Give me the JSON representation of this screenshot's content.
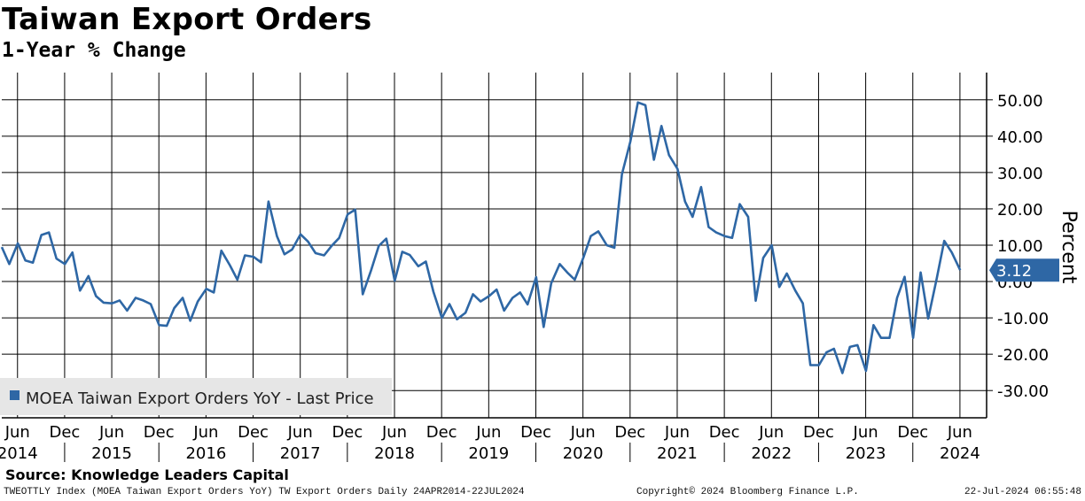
{
  "title": "Taiwan Export Orders",
  "subtitle": "1-Year % Change",
  "source": "Source: Knowledge Leaders Capital",
  "footer": {
    "left": "TWEOTTLY Index (MOEA Taiwan Export Orders YoY) TW Export Orders  Daily 24APR2014-22JUL2024",
    "center": "Copyright© 2024 Bloomberg Finance L.P.",
    "right": "22-Jul-2024 06:55:48"
  },
  "chart_data": {
    "type": "line",
    "ylabel": "Percent",
    "ylim": [
      -37.5,
      57.5
    ],
    "xlim": [
      2014.25,
      2024.7
    ],
    "yticks": [
      50,
      40,
      30,
      20,
      10,
      0,
      -10,
      -20,
      -30
    ],
    "ytick_labels": [
      "50.00",
      "40.00",
      "30.00",
      "20.00",
      "10.00",
      "0.00",
      "-10.00",
      "-20.00",
      "-30.00"
    ],
    "month_ticks": [
      {
        "x": 2014.417,
        "label": "Jun",
        "year": "2014"
      },
      {
        "x": 2014.917,
        "label": "Dec"
      },
      {
        "x": 2015.417,
        "label": "Jun",
        "year": "2015"
      },
      {
        "x": 2015.917,
        "label": "Dec"
      },
      {
        "x": 2016.417,
        "label": "Jun",
        "year": "2016"
      },
      {
        "x": 2016.917,
        "label": "Dec"
      },
      {
        "x": 2017.417,
        "label": "Jun",
        "year": "2017"
      },
      {
        "x": 2017.917,
        "label": "Dec"
      },
      {
        "x": 2018.417,
        "label": "Jun",
        "year": "2018"
      },
      {
        "x": 2018.917,
        "label": "Dec"
      },
      {
        "x": 2019.417,
        "label": "Jun",
        "year": "2019"
      },
      {
        "x": 2019.917,
        "label": "Dec"
      },
      {
        "x": 2020.417,
        "label": "Jun",
        "year": "2020"
      },
      {
        "x": 2020.917,
        "label": "Dec"
      },
      {
        "x": 2021.417,
        "label": "Jun",
        "year": "2021"
      },
      {
        "x": 2021.917,
        "label": "Dec"
      },
      {
        "x": 2022.417,
        "label": "Jun",
        "year": "2022"
      },
      {
        "x": 2022.917,
        "label": "Dec"
      },
      {
        "x": 2023.417,
        "label": "Jun",
        "year": "2023"
      },
      {
        "x": 2023.917,
        "label": "Dec"
      },
      {
        "x": 2024.417,
        "label": "Jun",
        "year": "2024"
      }
    ],
    "year_separators": [
      2014.917,
      2015.917,
      2016.917,
      2017.917,
      2018.917,
      2019.917,
      2020.917,
      2021.917,
      2022.917,
      2023.917
    ],
    "legend": "MOEA Taiwan Export Orders YoY - Last Price",
    "legend_position": "bottom-left",
    "last_value_label": "3.12",
    "series": [
      {
        "name": "MOEA Taiwan Export Orders YoY",
        "color": "#2e67a5",
        "points": [
          [
            2014.25,
            9.5
          ],
          [
            2014.33,
            4.8
          ],
          [
            2014.42,
            10.5
          ],
          [
            2014.5,
            5.8
          ],
          [
            2014.58,
            5.2
          ],
          [
            2014.67,
            12.8
          ],
          [
            2014.75,
            13.5
          ],
          [
            2014.83,
            6.3
          ],
          [
            2014.92,
            4.8
          ],
          [
            2015.0,
            8.0
          ],
          [
            2015.08,
            -2.5
          ],
          [
            2015.17,
            1.5
          ],
          [
            2015.25,
            -4.0
          ],
          [
            2015.33,
            -5.8
          ],
          [
            2015.42,
            -6.0
          ],
          [
            2015.5,
            -5.2
          ],
          [
            2015.58,
            -8.0
          ],
          [
            2015.67,
            -4.5
          ],
          [
            2015.75,
            -5.2
          ],
          [
            2015.83,
            -6.2
          ],
          [
            2015.92,
            -12.0
          ],
          [
            2016.0,
            -12.2
          ],
          [
            2016.08,
            -7.3
          ],
          [
            2016.17,
            -4.5
          ],
          [
            2016.25,
            -10.8
          ],
          [
            2016.33,
            -5.5
          ],
          [
            2016.42,
            -2.0
          ],
          [
            2016.5,
            -3.0
          ],
          [
            2016.58,
            8.5
          ],
          [
            2016.67,
            4.5
          ],
          [
            2016.75,
            0.5
          ],
          [
            2016.83,
            7.2
          ],
          [
            2016.92,
            6.8
          ],
          [
            2017.0,
            5.3
          ],
          [
            2017.08,
            22.0
          ],
          [
            2017.17,
            12.5
          ],
          [
            2017.25,
            7.5
          ],
          [
            2017.33,
            8.8
          ],
          [
            2017.42,
            13.0
          ],
          [
            2017.5,
            11.0
          ],
          [
            2017.58,
            7.8
          ],
          [
            2017.67,
            7.2
          ],
          [
            2017.75,
            9.8
          ],
          [
            2017.83,
            12.0
          ],
          [
            2017.92,
            18.5
          ],
          [
            2018.0,
            19.8
          ],
          [
            2018.08,
            -3.5
          ],
          [
            2018.17,
            3.2
          ],
          [
            2018.25,
            9.8
          ],
          [
            2018.33,
            11.8
          ],
          [
            2018.42,
            0.2
          ],
          [
            2018.5,
            8.2
          ],
          [
            2018.58,
            7.3
          ],
          [
            2018.67,
            4.2
          ],
          [
            2018.75,
            5.5
          ],
          [
            2018.83,
            -2.8
          ],
          [
            2018.92,
            -10.0
          ],
          [
            2019.0,
            -6.2
          ],
          [
            2019.08,
            -10.4
          ],
          [
            2019.17,
            -8.6
          ],
          [
            2019.25,
            -3.5
          ],
          [
            2019.33,
            -5.5
          ],
          [
            2019.42,
            -4.0
          ],
          [
            2019.5,
            -2.2
          ],
          [
            2019.58,
            -8.0
          ],
          [
            2019.67,
            -4.5
          ],
          [
            2019.75,
            -3.0
          ],
          [
            2019.83,
            -6.3
          ],
          [
            2019.92,
            1.2
          ],
          [
            2020.0,
            -12.5
          ],
          [
            2020.08,
            -0.5
          ],
          [
            2020.17,
            4.8
          ],
          [
            2020.25,
            2.5
          ],
          [
            2020.33,
            0.5
          ],
          [
            2020.42,
            6.5
          ],
          [
            2020.5,
            12.5
          ],
          [
            2020.58,
            13.8
          ],
          [
            2020.67,
            10.0
          ],
          [
            2020.75,
            9.3
          ],
          [
            2020.83,
            29.5
          ],
          [
            2020.92,
            38.5
          ],
          [
            2021.0,
            49.3
          ],
          [
            2021.08,
            48.5
          ],
          [
            2021.17,
            33.5
          ],
          [
            2021.25,
            42.8
          ],
          [
            2021.33,
            34.8
          ],
          [
            2021.42,
            31.0
          ],
          [
            2021.5,
            22.0
          ],
          [
            2021.58,
            17.8
          ],
          [
            2021.67,
            26.0
          ],
          [
            2021.75,
            15.0
          ],
          [
            2021.83,
            13.5
          ],
          [
            2021.92,
            12.5
          ],
          [
            2022.0,
            12.0
          ],
          [
            2022.08,
            21.3
          ],
          [
            2022.17,
            17.8
          ],
          [
            2022.25,
            -5.3
          ],
          [
            2022.33,
            6.5
          ],
          [
            2022.42,
            10.0
          ],
          [
            2022.5,
            -1.5
          ],
          [
            2022.58,
            2.2
          ],
          [
            2022.67,
            -2.5
          ],
          [
            2022.75,
            -6.0
          ],
          [
            2022.83,
            -23.0
          ],
          [
            2022.92,
            -23.0
          ],
          [
            2023.0,
            -19.5
          ],
          [
            2023.08,
            -18.5
          ],
          [
            2023.17,
            -25.2
          ],
          [
            2023.25,
            -18.0
          ],
          [
            2023.33,
            -17.5
          ],
          [
            2023.42,
            -24.6
          ],
          [
            2023.5,
            -12.0
          ],
          [
            2023.58,
            -15.5
          ],
          [
            2023.67,
            -15.5
          ],
          [
            2023.75,
            -4.5
          ],
          [
            2023.83,
            1.3
          ],
          [
            2023.92,
            -15.5
          ],
          [
            2024.0,
            2.5
          ],
          [
            2024.08,
            -10.2
          ],
          [
            2024.17,
            0.8
          ],
          [
            2024.25,
            11.2
          ],
          [
            2024.33,
            8.0
          ],
          [
            2024.42,
            3.12
          ]
        ]
      }
    ]
  }
}
